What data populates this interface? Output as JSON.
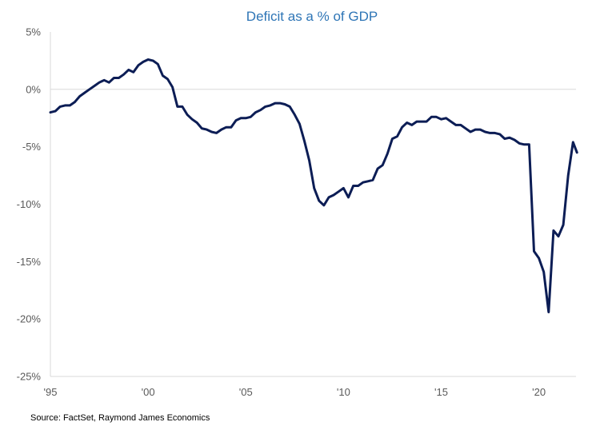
{
  "chart_data": {
    "type": "line",
    "title": "Deficit as a % of GDP",
    "xlabel": "",
    "ylabel": "",
    "xlim": [
      1995,
      2021.9
    ],
    "ylim": [
      -25,
      5
    ],
    "x_ticks": [
      {
        "value": 1995,
        "label": "'95"
      },
      {
        "value": 2000,
        "label": "'00"
      },
      {
        "value": 2005,
        "label": "'05"
      },
      {
        "value": 2010,
        "label": "'10"
      },
      {
        "value": 2015,
        "label": "'15"
      },
      {
        "value": 2020,
        "label": "'20"
      }
    ],
    "y_ticks": [
      {
        "value": 5,
        "label": "5%"
      },
      {
        "value": 0,
        "label": "0%"
      },
      {
        "value": -5,
        "label": "-5%"
      },
      {
        "value": -10,
        "label": "-10%"
      },
      {
        "value": -15,
        "label": "-15%"
      },
      {
        "value": -20,
        "label": "-20%"
      },
      {
        "value": -25,
        "label": "-25%"
      }
    ],
    "grid": false,
    "legend": "none",
    "series": [
      {
        "color": "#0c1d55",
        "points": [
          [
            1995.0,
            -2.0
          ],
          [
            1995.25,
            -1.9
          ],
          [
            1995.5,
            -1.5
          ],
          [
            1995.75,
            -1.4
          ],
          [
            1996.0,
            -1.4
          ],
          [
            1996.25,
            -1.1
          ],
          [
            1996.5,
            -0.6
          ],
          [
            1996.75,
            -0.3
          ],
          [
            1997.0,
            0.0
          ],
          [
            1997.25,
            0.3
          ],
          [
            1997.5,
            0.6
          ],
          [
            1997.75,
            0.8
          ],
          [
            1998.0,
            0.6
          ],
          [
            1998.25,
            1.0
          ],
          [
            1998.5,
            1.0
          ],
          [
            1998.75,
            1.3
          ],
          [
            1999.0,
            1.7
          ],
          [
            1999.25,
            1.5
          ],
          [
            1999.5,
            2.1
          ],
          [
            1999.75,
            2.4
          ],
          [
            2000.0,
            2.6
          ],
          [
            2000.25,
            2.5
          ],
          [
            2000.5,
            2.2
          ],
          [
            2000.75,
            1.2
          ],
          [
            2001.0,
            0.9
          ],
          [
            2001.25,
            0.2
          ],
          [
            2001.5,
            -1.5
          ],
          [
            2001.75,
            -1.5
          ],
          [
            2002.0,
            -2.2
          ],
          [
            2002.25,
            -2.6
          ],
          [
            2002.5,
            -2.9
          ],
          [
            2002.75,
            -3.4
          ],
          [
            2003.0,
            -3.5
          ],
          [
            2003.25,
            -3.7
          ],
          [
            2003.5,
            -3.8
          ],
          [
            2003.75,
            -3.5
          ],
          [
            2004.0,
            -3.3
          ],
          [
            2004.25,
            -3.3
          ],
          [
            2004.5,
            -2.7
          ],
          [
            2004.75,
            -2.5
          ],
          [
            2005.0,
            -2.5
          ],
          [
            2005.25,
            -2.4
          ],
          [
            2005.5,
            -2.0
          ],
          [
            2005.75,
            -1.8
          ],
          [
            2006.0,
            -1.5
          ],
          [
            2006.25,
            -1.4
          ],
          [
            2006.5,
            -1.2
          ],
          [
            2006.75,
            -1.2
          ],
          [
            2007.0,
            -1.3
          ],
          [
            2007.25,
            -1.5
          ],
          [
            2007.5,
            -2.2
          ],
          [
            2007.75,
            -3.0
          ],
          [
            2008.0,
            -4.5
          ],
          [
            2008.25,
            -6.2
          ],
          [
            2008.5,
            -8.6
          ],
          [
            2008.75,
            -9.7
          ],
          [
            2009.0,
            -10.1
          ],
          [
            2009.25,
            -9.4
          ],
          [
            2009.5,
            -9.2
          ],
          [
            2009.75,
            -8.9
          ],
          [
            2010.0,
            -8.6
          ],
          [
            2010.25,
            -9.4
          ],
          [
            2010.5,
            -8.4
          ],
          [
            2010.75,
            -8.4
          ],
          [
            2011.0,
            -8.1
          ],
          [
            2011.25,
            -8.0
          ],
          [
            2011.5,
            -7.9
          ],
          [
            2011.75,
            -6.9
          ],
          [
            2012.0,
            -6.6
          ],
          [
            2012.25,
            -5.6
          ],
          [
            2012.5,
            -4.3
          ],
          [
            2012.75,
            -4.1
          ],
          [
            2013.0,
            -3.3
          ],
          [
            2013.25,
            -2.9
          ],
          [
            2013.5,
            -3.1
          ],
          [
            2013.75,
            -2.8
          ],
          [
            2014.0,
            -2.8
          ],
          [
            2014.25,
            -2.8
          ],
          [
            2014.5,
            -2.4
          ],
          [
            2014.75,
            -2.4
          ],
          [
            2015.0,
            -2.6
          ],
          [
            2015.25,
            -2.5
          ],
          [
            2015.5,
            -2.8
          ],
          [
            2015.75,
            -3.1
          ],
          [
            2016.0,
            -3.1
          ],
          [
            2016.25,
            -3.4
          ],
          [
            2016.5,
            -3.7
          ],
          [
            2016.75,
            -3.5
          ],
          [
            2017.0,
            -3.5
          ],
          [
            2017.25,
            -3.7
          ],
          [
            2017.5,
            -3.8
          ],
          [
            2017.75,
            -3.8
          ],
          [
            2018.0,
            -3.9
          ],
          [
            2018.25,
            -4.3
          ],
          [
            2018.5,
            -4.2
          ],
          [
            2018.75,
            -4.4
          ],
          [
            2019.0,
            -4.7
          ],
          [
            2019.25,
            -4.8
          ],
          [
            2019.5,
            -4.8
          ],
          [
            2019.75,
            -14.1
          ],
          [
            2020.0,
            -14.7
          ],
          [
            2020.25,
            -15.9
          ],
          [
            2020.5,
            -19.4
          ],
          [
            2020.75,
            -12.3
          ],
          [
            2021.0,
            -12.8
          ],
          [
            2021.25,
            -11.8
          ],
          [
            2021.5,
            -7.5
          ],
          [
            2021.75,
            -4.6
          ],
          [
            2021.95,
            -5.5
          ]
        ]
      }
    ]
  },
  "footer": {
    "source_text": "Source: FactSet, Raymond James Economics"
  }
}
